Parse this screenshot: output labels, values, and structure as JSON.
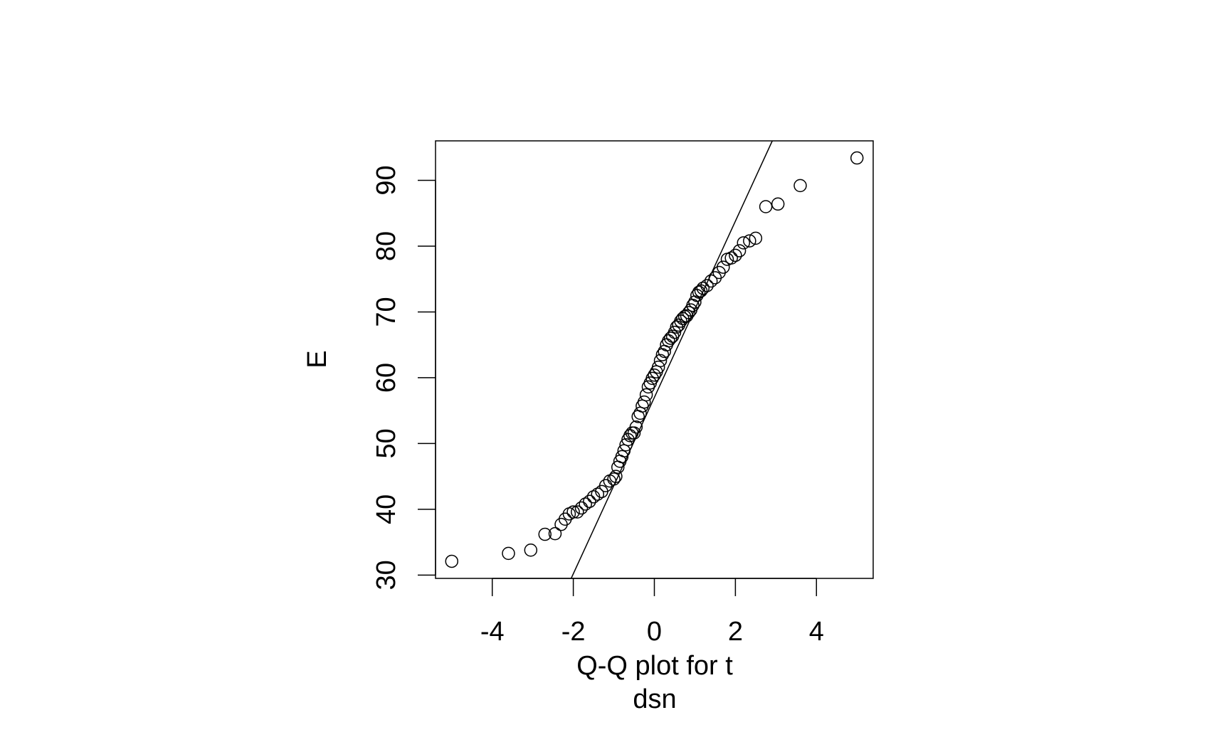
{
  "chart_data": {
    "type": "scatter",
    "title": "",
    "xlabel": "Q-Q plot for t",
    "xlabel_line2": "dsn",
    "ylabel": "E",
    "xlim": [
      -5.4,
      5.4
    ],
    "ylim": [
      29.5,
      96.0
    ],
    "x_ticks": [
      -4,
      -2,
      0,
      2,
      4
    ],
    "x_tick_labels": [
      "-4",
      "-2",
      "0",
      "2",
      "4"
    ],
    "y_ticks": [
      30,
      40,
      50,
      60,
      70,
      80,
      90
    ],
    "y_tick_labels": [
      "30",
      "40",
      "50",
      "60",
      "70",
      "80",
      "90"
    ],
    "grid": false,
    "marker": "open-circle",
    "reference_line": {
      "slope": 13.4,
      "intercept": 57.0
    },
    "points": {
      "x": [
        -5.0,
        -3.6,
        -3.05,
        -2.7,
        -2.45,
        -2.3,
        -2.2,
        -2.1,
        -2.0,
        -1.9,
        -1.8,
        -1.7,
        -1.6,
        -1.5,
        -1.4,
        -1.3,
        -1.2,
        -1.1,
        -1.0,
        -0.95,
        -0.9,
        -0.85,
        -0.8,
        -0.75,
        -0.7,
        -0.65,
        -0.6,
        -0.55,
        -0.5,
        -0.45,
        -0.4,
        -0.35,
        -0.3,
        -0.25,
        -0.2,
        -0.15,
        -0.1,
        -0.05,
        0.0,
        0.05,
        0.1,
        0.15,
        0.2,
        0.25,
        0.3,
        0.35,
        0.4,
        0.45,
        0.5,
        0.55,
        0.6,
        0.65,
        0.7,
        0.75,
        0.8,
        0.85,
        0.9,
        0.95,
        1.0,
        1.05,
        1.1,
        1.15,
        1.2,
        1.3,
        1.4,
        1.5,
        1.6,
        1.7,
        1.8,
        1.9,
        2.0,
        2.1,
        2.2,
        2.35,
        2.5,
        2.75,
        3.05,
        3.6,
        5.0
      ],
      "y": [
        32.1,
        33.3,
        33.8,
        36.2,
        36.3,
        37.7,
        38.5,
        39.3,
        39.6,
        39.6,
        40.2,
        40.8,
        41.2,
        41.9,
        42.3,
        42.7,
        43.6,
        44.3,
        44.6,
        45.0,
        46.4,
        47.3,
        48.0,
        48.9,
        49.8,
        50.6,
        51.2,
        51.6,
        51.6,
        52.5,
        54.1,
        54.6,
        55.7,
        56.3,
        57.4,
        58.6,
        59.2,
        59.9,
        60.4,
        60.9,
        61.6,
        62.6,
        63.5,
        64.0,
        65.0,
        65.6,
        66.0,
        66.3,
        66.9,
        67.7,
        68.0,
        68.6,
        69.0,
        69.3,
        69.4,
        69.9,
        70.3,
        71.0,
        71.5,
        72.5,
        73.0,
        73.2,
        73.6,
        74.0,
        74.7,
        75.2,
        76.0,
        76.8,
        78.0,
        78.2,
        78.6,
        79.3,
        80.5,
        80.8,
        81.2,
        86.0,
        86.4,
        89.2,
        93.4
      ]
    }
  }
}
